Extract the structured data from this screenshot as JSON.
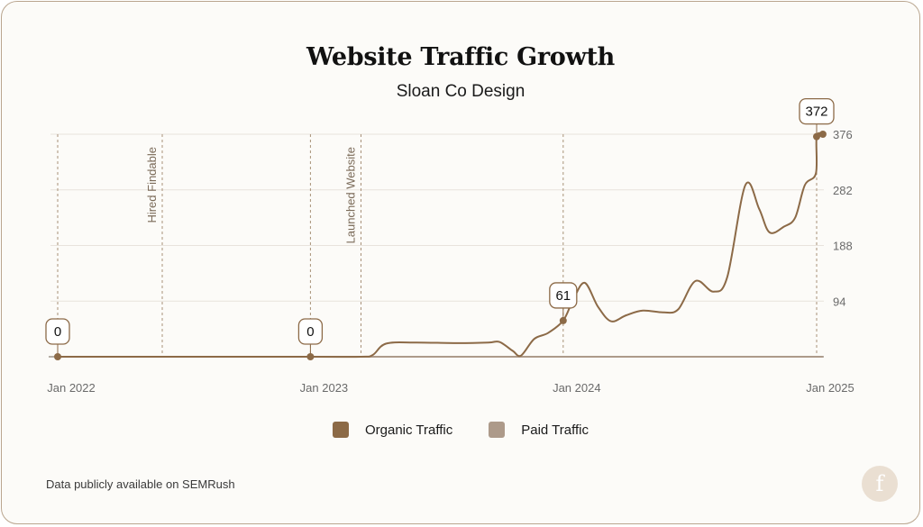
{
  "header": {
    "title": "Website Traffic Growth",
    "subtitle": "Sloan Co Design"
  },
  "colors": {
    "organic": "#8c6a47",
    "paid": "#ad9a8a",
    "axis": "#8a7f73",
    "grid": "#e8e3dc",
    "dashed": "#a89279",
    "text": "#6a6a6a"
  },
  "chart_data": {
    "type": "line",
    "title": "Website Traffic Growth",
    "subtitle": "Sloan Co Design",
    "xlabel": "",
    "ylabel": "",
    "x_range": [
      "2022-01",
      "2025-01"
    ],
    "ylim": [
      0,
      376
    ],
    "y_ticks": [
      94,
      188,
      282,
      376
    ],
    "x_ticks": [
      {
        "x": "2022-01",
        "label": "Jan 2022"
      },
      {
        "x": "2023-01",
        "label": "Jan 2023"
      },
      {
        "x": "2024-01",
        "label": "Jan 2024"
      },
      {
        "x": "2025-01",
        "label": "Jan 2025"
      }
    ],
    "grid": true,
    "legend_position": "bottom",
    "legend": [
      "Organic Traffic",
      "Paid Traffic"
    ],
    "series": [
      {
        "name": "Organic Traffic",
        "points": [
          [
            "2022-01-01",
            0
          ],
          [
            "2022-06-01",
            0
          ],
          [
            "2023-01-01",
            0
          ],
          [
            "2023-03-15",
            0
          ],
          [
            "2023-04-01",
            3
          ],
          [
            "2023-04-20",
            22
          ],
          [
            "2023-06-01",
            24
          ],
          [
            "2023-08-01",
            23
          ],
          [
            "2023-09-15",
            24
          ],
          [
            "2023-10-01",
            25
          ],
          [
            "2023-10-20",
            10
          ],
          [
            "2023-11-01",
            2
          ],
          [
            "2023-11-20",
            30
          ],
          [
            "2023-12-10",
            40
          ],
          [
            "2024-01-01",
            61
          ],
          [
            "2024-01-15",
            95
          ],
          [
            "2024-02-01",
            125
          ],
          [
            "2024-02-20",
            85
          ],
          [
            "2024-03-10",
            60
          ],
          [
            "2024-04-01",
            70
          ],
          [
            "2024-04-25",
            78
          ],
          [
            "2024-05-25",
            75
          ],
          [
            "2024-06-15",
            80
          ],
          [
            "2024-07-10",
            128
          ],
          [
            "2024-08-05",
            110
          ],
          [
            "2024-08-25",
            135
          ],
          [
            "2024-09-20",
            290
          ],
          [
            "2024-10-10",
            250
          ],
          [
            "2024-10-25",
            210
          ],
          [
            "2024-11-15",
            220
          ],
          [
            "2024-12-01",
            235
          ],
          [
            "2024-12-15",
            290
          ],
          [
            "2024-12-31",
            310
          ],
          [
            "2025-01-01",
            372
          ],
          [
            "2025-01-10",
            376
          ]
        ]
      },
      {
        "name": "Paid Traffic",
        "points": [
          [
            "2022-01-01",
            0
          ],
          [
            "2023-01-01",
            0
          ],
          [
            "2023-04-01",
            0
          ],
          [
            "2024-01-01",
            0
          ],
          [
            "2025-01-10",
            0
          ]
        ]
      }
    ],
    "annotations": [
      {
        "x": "2022-06-01",
        "label": "Hired Findable"
      },
      {
        "x": "2023-03-15",
        "label": "Launched Website"
      }
    ],
    "callouts": [
      {
        "x": "2022-01-01",
        "value": "0",
        "y": 0
      },
      {
        "x": "2023-01-01",
        "value": "0",
        "y": 0
      },
      {
        "x": "2024-01-01",
        "value": "61",
        "y": 61
      },
      {
        "x": "2025-01-01",
        "value": "372",
        "y": 372
      }
    ]
  },
  "footer": {
    "note": "Data publicly available on SEMRush",
    "logo_letter": "f"
  }
}
